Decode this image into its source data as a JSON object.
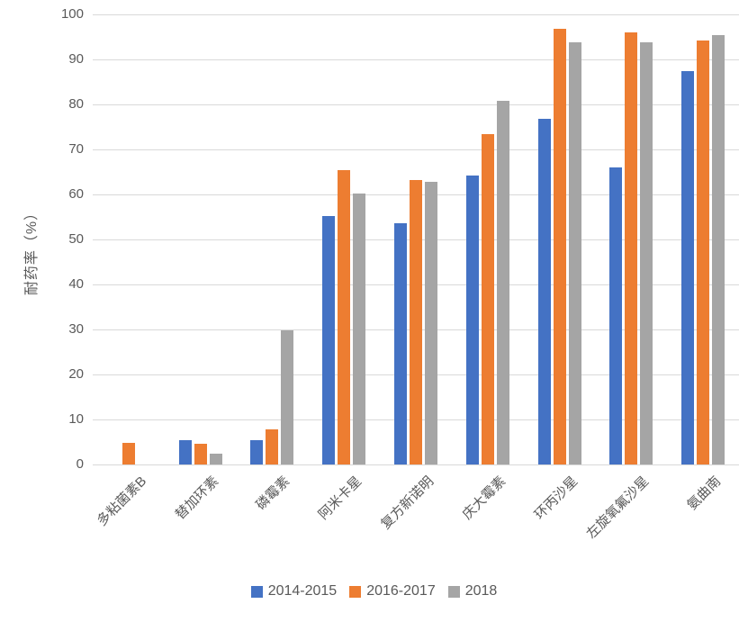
{
  "chart_data": {
    "type": "bar",
    "title": "",
    "xlabel": "",
    "ylabel": "耐药率（%）",
    "ylim": [
      0,
      100
    ],
    "ytick_step": 10,
    "grid": true,
    "legend_position": "bottom",
    "categories": [
      "多粘菌素B",
      "替加环素",
      "磷霉素",
      "阿米卡星",
      "复方新诺明",
      "庆大霉素",
      "环丙沙星",
      "左旋氧氟沙星",
      "氨曲南"
    ],
    "series": [
      {
        "name": "2014-2015",
        "color": "#4472C4",
        "values": [
          0,
          5.5,
          5.5,
          55.2,
          53.7,
          64.3,
          76.9,
          66.0,
          87.5
        ]
      },
      {
        "name": "2016-2017",
        "color": "#ED7D31",
        "values": [
          4.8,
          4.7,
          7.9,
          65.5,
          63.3,
          73.4,
          96.8,
          96.1,
          94.3
        ]
      },
      {
        "name": "2018",
        "color": "#A5A5A5",
        "values": [
          0,
          2.5,
          29.9,
          60.3,
          62.9,
          80.9,
          93.8,
          93.8,
          95.4
        ]
      }
    ]
  },
  "colors": {
    "background": "#FFFFFF",
    "gridline": "#D9D9D9",
    "axis_text": "#595959"
  }
}
